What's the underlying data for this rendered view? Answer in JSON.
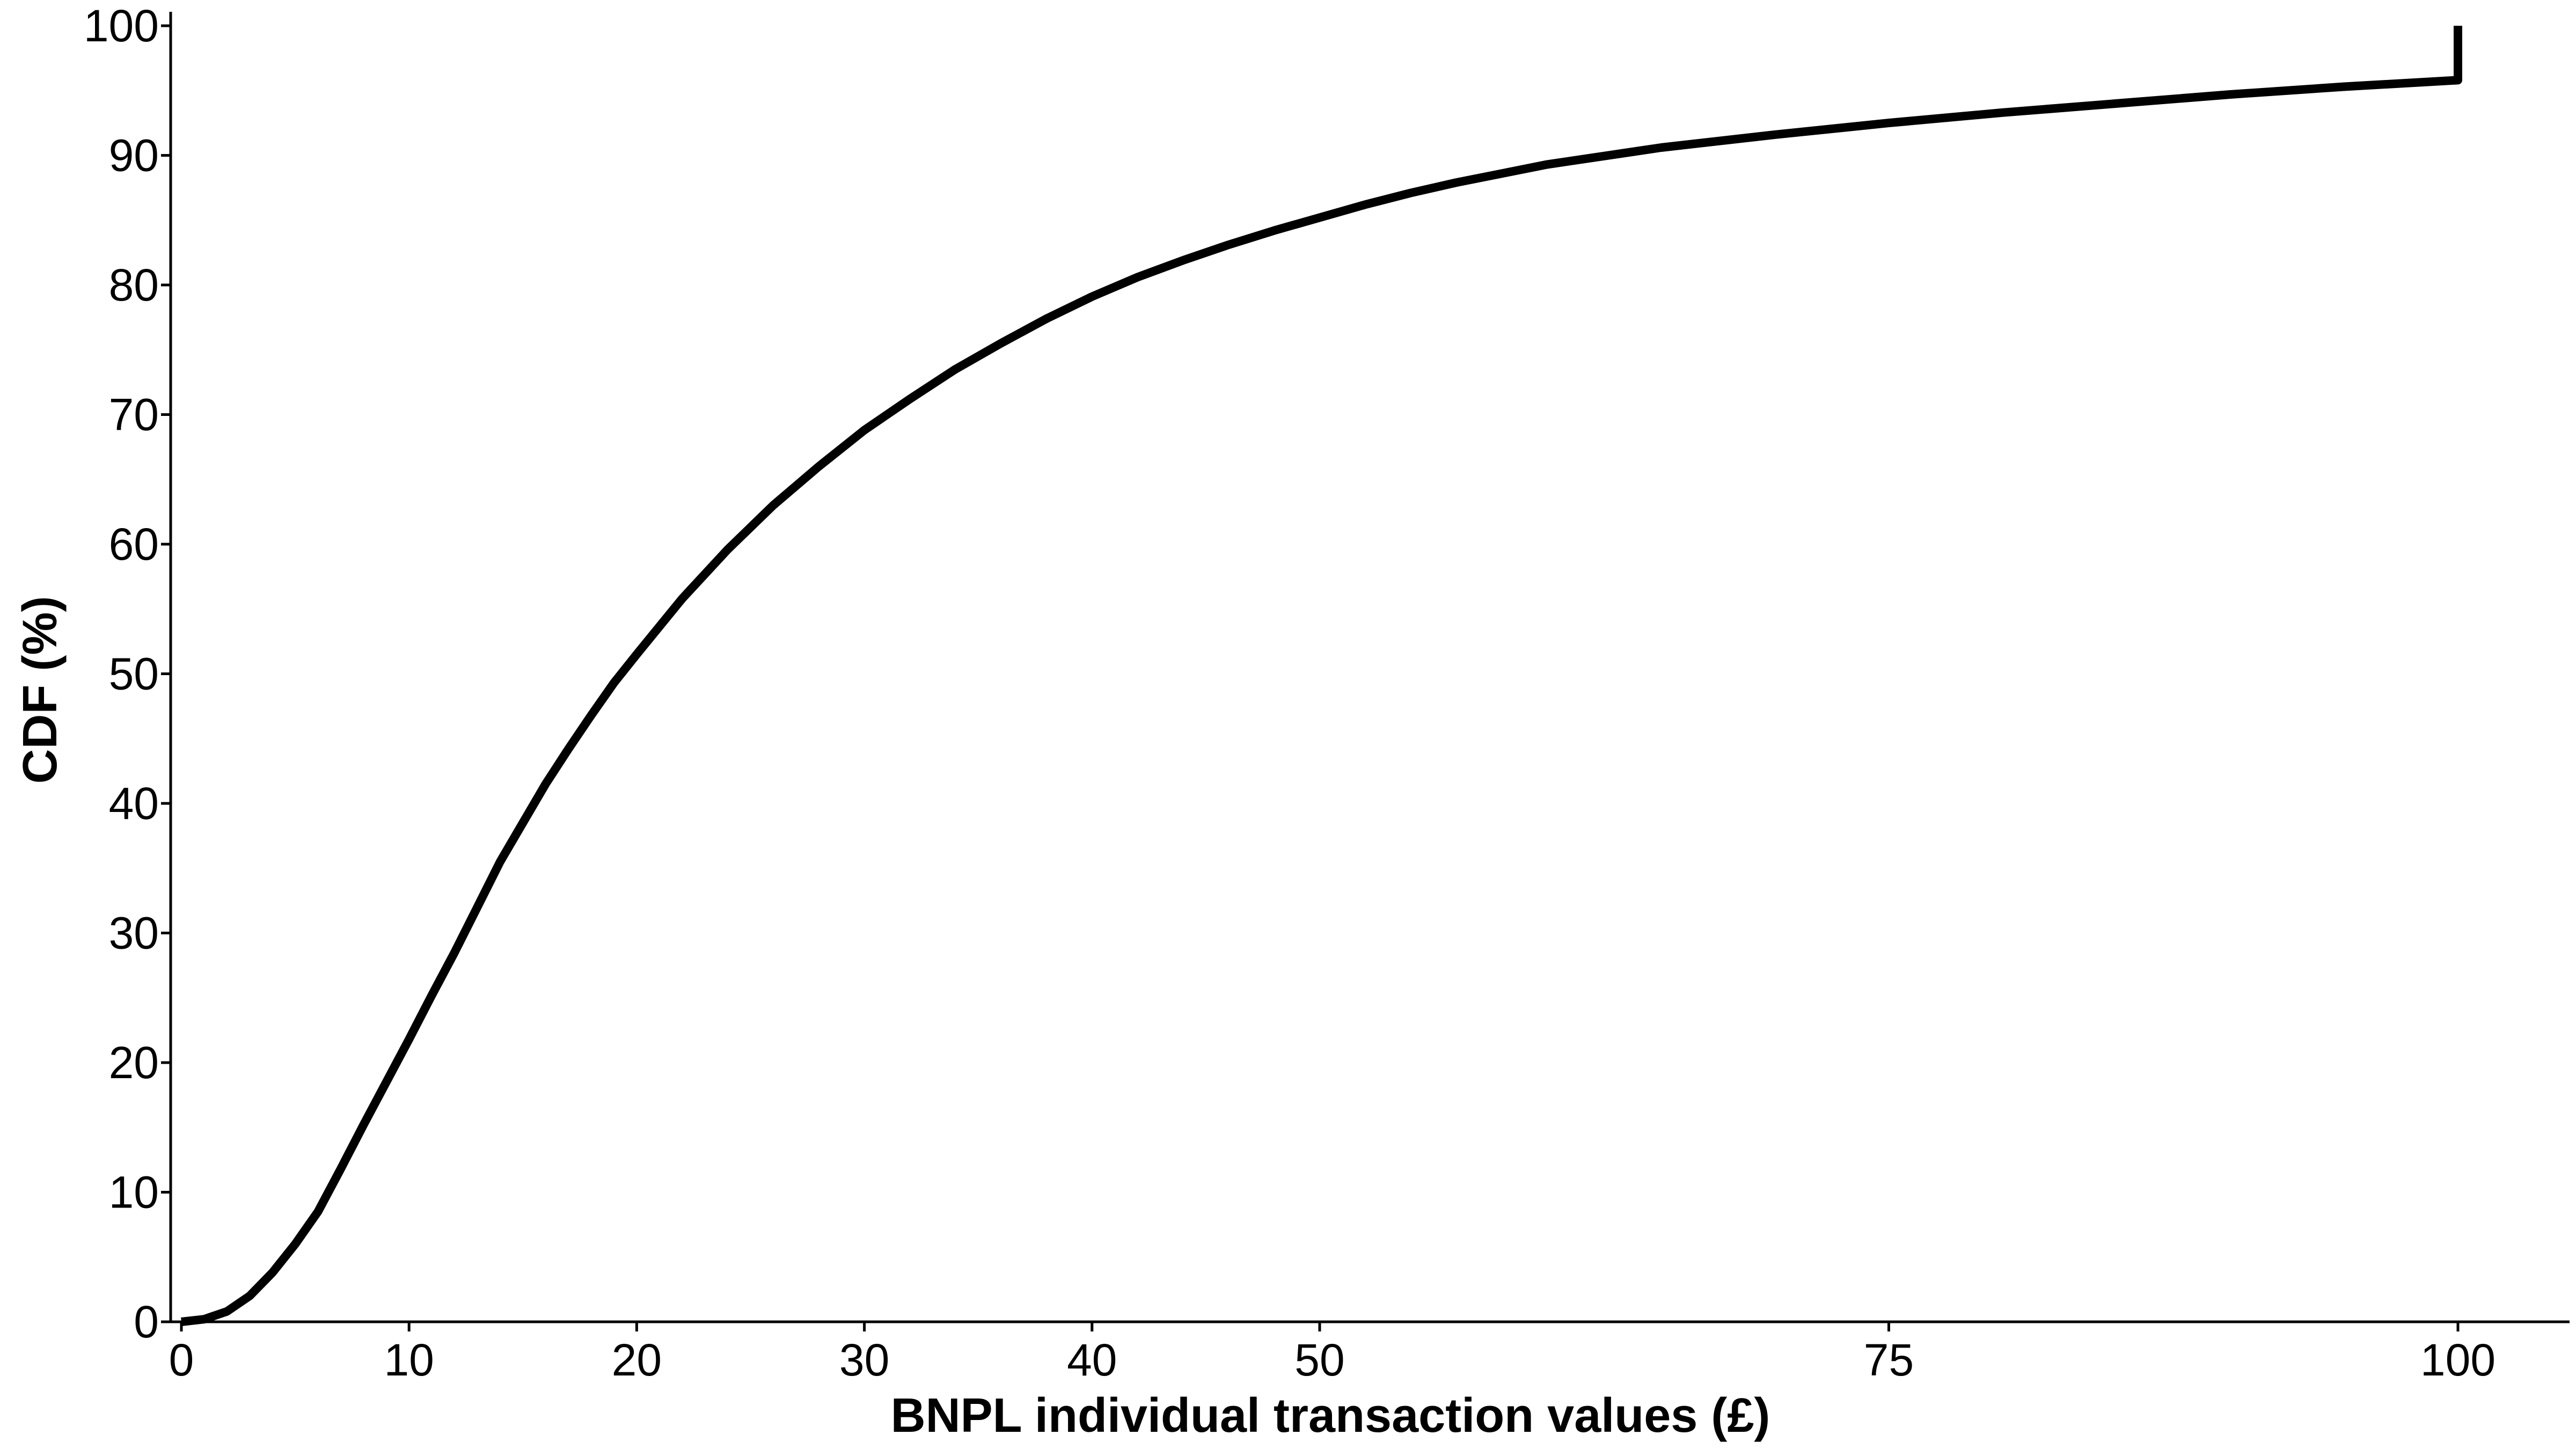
{
  "chart_data": {
    "type": "line",
    "title": "",
    "xlabel": "BNPL individual transaction values (£)",
    "ylabel": "CDF (%)",
    "xlim": [
      0,
      100
    ],
    "ylim": [
      0,
      100
    ],
    "x_ticks": [
      0,
      10,
      20,
      30,
      40,
      50,
      75,
      100
    ],
    "y_ticks": [
      0,
      10,
      20,
      30,
      40,
      50,
      60,
      70,
      80,
      90,
      100
    ],
    "grid": false,
    "legend": "none",
    "line_color": "#000000",
    "series": [
      {
        "x": [
          0,
          1,
          2,
          3,
          4,
          5,
          6,
          7,
          8,
          9,
          10,
          11,
          12,
          13,
          14,
          15,
          16,
          17,
          18,
          19,
          20,
          22,
          24,
          26,
          28,
          30,
          32,
          34,
          36,
          38,
          40,
          42,
          44,
          46,
          48,
          50,
          52,
          54,
          56,
          58,
          60,
          65,
          70,
          75,
          80,
          85,
          90,
          95,
          100,
          100
        ],
        "y": [
          0,
          0.2,
          0.8,
          2.0,
          3.8,
          6.0,
          8.5,
          11.8,
          15.2,
          18.5,
          21.8,
          25.2,
          28.5,
          32.0,
          35.5,
          38.5,
          41.5,
          44.2,
          46.8,
          49.3,
          51.5,
          55.8,
          59.6,
          63.0,
          66.0,
          68.8,
          71.2,
          73.5,
          75.5,
          77.4,
          79.1,
          80.6,
          81.9,
          83.1,
          84.2,
          85.2,
          86.2,
          87.1,
          87.9,
          88.6,
          89.3,
          90.6,
          91.6,
          92.5,
          93.3,
          94.0,
          94.7,
          95.3,
          95.8,
          100
        ]
      }
    ]
  }
}
